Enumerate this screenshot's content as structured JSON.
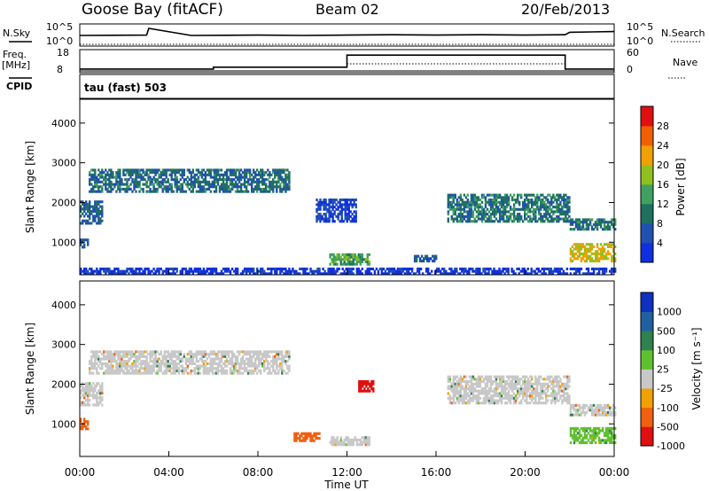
{
  "header": {
    "station": "Goose Bay (fitACF)",
    "beam": "Beam 02",
    "date": "20/Feb/2013"
  },
  "control_panel": {
    "nsky_label": "N.Sky",
    "nsky_ticks": [
      "10^5",
      "10^0"
    ],
    "nsearch_label": "N.Search",
    "nsearch_ticks": [
      "10^5",
      "10^0"
    ],
    "freq_label": "Freq.",
    "freq_unit": "[MHz]",
    "freq_ticks": [
      "18",
      "8"
    ],
    "nave_label": "Nave",
    "nave_ticks": [
      "60",
      "0"
    ],
    "cpid_label": "CPID",
    "cpid_value": "tau (fast) 503"
  },
  "chart_data": [
    {
      "type": "line",
      "name": "noise",
      "series": [
        {
          "name": "N.Sky",
          "x": [
            0,
            3,
            3.1,
            5,
            8,
            10,
            12,
            14,
            16,
            18,
            20,
            21.8,
            22,
            23,
            24
          ],
          "y": [
            2.5,
            2.6,
            4.5,
            2.5,
            2.6,
            2.5,
            2.6,
            2.7,
            2.6,
            2.7,
            2.6,
            2.7,
            3.4,
            3.5,
            3.6
          ]
        },
        {
          "name": "N.Search",
          "x": [
            0,
            24
          ],
          "y": [
            0,
            0
          ]
        }
      ]
    },
    {
      "type": "line",
      "name": "frequency_nave",
      "series": [
        {
          "name": "Freq.",
          "x": [
            0,
            6,
            6,
            12,
            12,
            21.8,
            21.8,
            24
          ],
          "y": [
            9.0,
            9.0,
            10.0,
            10.0,
            16.5,
            16.5,
            9.0,
            9.0
          ]
        },
        {
          "name": "Nave",
          "x": [
            0,
            24
          ],
          "y": [
            0,
            0
          ]
        }
      ]
    },
    {
      "type": "heatmap",
      "name": "power",
      "xlabel": "Time UT",
      "ylabel": "Slant Range [km]",
      "x_ticks": [
        "00:00",
        "04:00",
        "08:00",
        "12:00",
        "16:00",
        "20:00",
        "00:00"
      ],
      "y_ticks": [
        "1000",
        "2000",
        "3000",
        "4000"
      ],
      "ylim": [
        180,
        4600
      ],
      "colorbar_label": "Power [dB]",
      "colorbar_ticks": [
        "4",
        "8",
        "12",
        "16",
        "20",
        "24",
        "28"
      ],
      "colors": [
        "#1030e0",
        "#2050b0",
        "#207060",
        "#40a060",
        "#90c020",
        "#f0a000",
        "#f06000",
        "#e01010"
      ],
      "regions": [
        {
          "t0": 0.0,
          "t1": 1.0,
          "r0": 1450,
          "r1": 2050,
          "v": 10
        },
        {
          "t0": 0.4,
          "t1": 9.4,
          "r0": 2250,
          "r1": 2800,
          "v": 11
        },
        {
          "t0": 0.0,
          "t1": 0.4,
          "r0": 850,
          "r1": 1050,
          "v": 9
        },
        {
          "t0": 10.6,
          "t1": 12.4,
          "r0": 1500,
          "r1": 2050,
          "v": 6
        },
        {
          "t0": 11.2,
          "t1": 13.0,
          "r0": 420,
          "r1": 700,
          "v": 16
        },
        {
          "t0": 15.0,
          "t1": 16.0,
          "r0": 500,
          "r1": 680,
          "v": 9
        },
        {
          "t0": 16.5,
          "t1": 22.0,
          "r0": 1500,
          "r1": 2200,
          "v": 12
        },
        {
          "t0": 22.0,
          "t1": 24.0,
          "r0": 1300,
          "r1": 1600,
          "v": 12
        },
        {
          "t0": 22.0,
          "t1": 24.0,
          "r0": 500,
          "r1": 950,
          "v": 22
        },
        {
          "t0": 0.0,
          "t1": 24.0,
          "r0": 180,
          "r1": 320,
          "v": 4
        }
      ]
    },
    {
      "type": "heatmap",
      "name": "velocity",
      "xlabel": "Time UT",
      "ylabel": "Slant Range [km]",
      "x_ticks": [
        "00:00",
        "04:00",
        "08:00",
        "12:00",
        "16:00",
        "20:00",
        "00:00"
      ],
      "y_ticks": [
        "1000",
        "2000",
        "3000",
        "4000"
      ],
      "ylim": [
        180,
        4600
      ],
      "colorbar_label": "Velocity [m s⁻¹]",
      "colorbar_ticks": [
        "1000",
        "500",
        "100",
        "25",
        "-25",
        "-100",
        "-500",
        "-1000"
      ],
      "colors": [
        "#1030c0",
        "#2060a0",
        "#308050",
        "#60c030",
        "#c8c8c8",
        "#f0a000",
        "#f06010",
        "#e01010"
      ],
      "regions": [
        {
          "t0": 0.0,
          "t1": 1.0,
          "r0": 1450,
          "r1": 2050,
          "v": 0
        },
        {
          "t0": 0.4,
          "t1": 9.4,
          "r0": 2250,
          "r1": 2800,
          "v": 0
        },
        {
          "t0": 0.0,
          "t1": 0.4,
          "r0": 850,
          "r1": 1100,
          "v": -150
        },
        {
          "t0": 9.6,
          "t1": 10.8,
          "r0": 550,
          "r1": 750,
          "v": -150
        },
        {
          "t0": 11.2,
          "t1": 13.0,
          "r0": 450,
          "r1": 650,
          "v": 0
        },
        {
          "t0": 12.5,
          "t1": 13.2,
          "r0": 1800,
          "r1": 2100,
          "v": -600
        },
        {
          "t0": 16.5,
          "t1": 22.0,
          "r0": 1500,
          "r1": 2200,
          "v": 0
        },
        {
          "t0": 22.0,
          "t1": 24.0,
          "r0": 500,
          "r1": 900,
          "v": 50
        },
        {
          "t0": 22.0,
          "t1": 24.0,
          "r0": 1200,
          "r1": 1500,
          "v": 0
        }
      ]
    }
  ]
}
